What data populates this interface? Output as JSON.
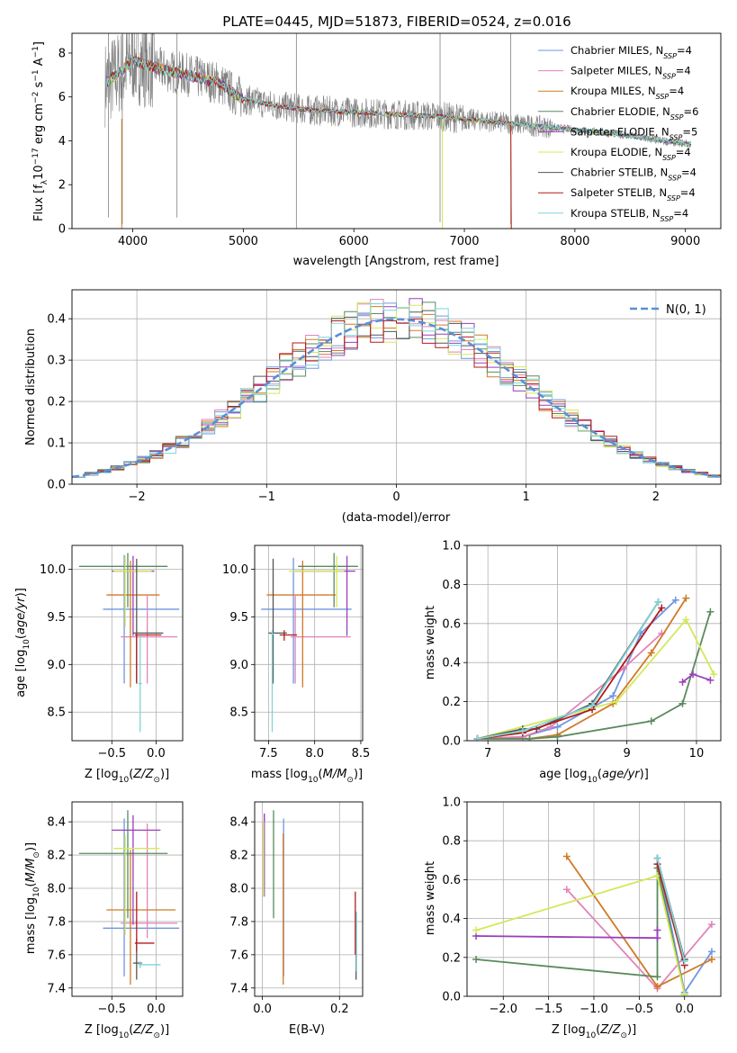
{
  "title": "PLATE=0445, MJD=51873, FIBERID=0524, z=0.016",
  "chart_data": [
    {
      "id": "spectrum",
      "type": "line",
      "xlabel": "wavelength [Angstrom, rest frame]",
      "ylabel": "Flux [f_λ10^-17 erg cm^-2 s^-1 A^-1]",
      "xlim": [
        3450,
        9320
      ],
      "ylim": [
        0,
        8.9
      ],
      "xticks": [
        4000,
        5000,
        6000,
        7000,
        8000,
        9000
      ],
      "yticks": [
        0,
        2,
        4,
        6,
        8
      ],
      "data_color": "#808080",
      "continuum": {
        "x": [
          3750,
          3900,
          4000,
          4100,
          4300,
          4500,
          4800,
          4900,
          5000,
          5300,
          5600,
          6000,
          6400,
          6800,
          7000,
          7400,
          7600,
          7800,
          8000,
          8200,
          8400,
          8600,
          8800,
          9050
        ],
        "y": [
          6.6,
          7.2,
          7.7,
          7.5,
          7.2,
          7.0,
          6.6,
          6.2,
          5.9,
          5.6,
          5.4,
          5.3,
          5.2,
          5.1,
          5.0,
          4.8,
          4.7,
          4.6,
          4.5,
          4.4,
          4.3,
          4.15,
          4.0,
          3.85
        ]
      },
      "legend": [
        {
          "name": "Chabrier MILES, N",
          "sub": "SSP",
          "tail": "=4",
          "color": "#6f96e0"
        },
        {
          "name": "Salpeter MILES, N",
          "sub": "SSP",
          "tail": "=4",
          "color": "#e084b8"
        },
        {
          "name": "Kroupa MILES, N",
          "sub": "SSP",
          "tail": "=4",
          "color": "#d07a26"
        },
        {
          "name": "Chabrier ELODIE, N",
          "sub": "SSP",
          "tail": "=6",
          "color": "#5a8a5e"
        },
        {
          "name": "Salpeter ELODIE, N",
          "sub": "SSP",
          "tail": "=5",
          "color": "#9a3fba"
        },
        {
          "name": "Kroupa ELODIE, N",
          "sub": "SSP",
          "tail": "=4",
          "color": "#d4e85a"
        },
        {
          "name": "Chabrier STELIB, N",
          "sub": "SSP",
          "tail": "=4",
          "color": "#555555"
        },
        {
          "name": "Salpeter STELIB, N",
          "sub": "SSP",
          "tail": "=4",
          "color": "#b31b1b"
        },
        {
          "name": "Kroupa STELIB, N",
          "sub": "SSP",
          "tail": "=4",
          "color": "#7fd4d8"
        }
      ]
    },
    {
      "id": "residuals",
      "type": "histogram",
      "xlabel": "(data-model)/error",
      "ylabel": "Normed distribution",
      "xlim": [
        -2.5,
        2.5
      ],
      "ylim": [
        0,
        0.47
      ],
      "xticks": [
        -2,
        -1,
        0,
        1,
        2
      ],
      "yticks": [
        0.0,
        0.1,
        0.2,
        0.3,
        0.4
      ],
      "bin_width": 0.1,
      "legend_label": "N(0, 1)",
      "gauss_color": "#5b8fd6"
    },
    {
      "id": "age_vs_Z",
      "type": "errorbar",
      "xlabel": "Z [log10(Z/Z⊙)]",
      "ylabel": "age [log10(age/yr)]",
      "xlim": [
        -0.95,
        0.3
      ],
      "ylim": [
        8.2,
        10.25
      ],
      "xticks": [
        -0.5,
        0.0
      ],
      "yticks": [
        8.5,
        9.0,
        9.5,
        10.0
      ],
      "points": [
        {
          "x": -0.36,
          "y": 9.58,
          "xe": [
            -0.6,
            0.26
          ],
          "ye": [
            8.8,
            10.15
          ],
          "color": "#6f96e0"
        },
        {
          "x": -0.1,
          "y": 9.29,
          "xe": [
            -0.4,
            0.24
          ],
          "ye": [
            8.8,
            9.72
          ],
          "color": "#e084b8"
        },
        {
          "x": -0.29,
          "y": 9.73,
          "xe": [
            -0.56,
            0.04
          ],
          "ye": [
            8.76,
            10.09
          ],
          "color": "#d07a26"
        },
        {
          "x": -0.32,
          "y": 10.03,
          "xe": [
            -0.87,
            0.13
          ],
          "ye": [
            9.6,
            10.17
          ],
          "color": "#5a8a5e"
        },
        {
          "x": -0.26,
          "y": 9.98,
          "xe": [
            -0.5,
            -0.02
          ],
          "ye": [
            9.3,
            10.14
          ],
          "color": "#9a3fba"
        },
        {
          "x": -0.35,
          "y": 9.98,
          "xe": [
            -0.48,
            -0.05
          ],
          "ye": [
            9.4,
            10.14
          ],
          "color": "#d4e85a"
        },
        {
          "x": -0.22,
          "y": 9.33,
          "xe": [
            -0.26,
            0.08
          ],
          "ye": [
            8.8,
            10.11
          ],
          "color": "#555555"
        },
        {
          "x": -0.22,
          "y": 9.31,
          "xe": [
            -0.24,
            0.06
          ],
          "ye": [
            8.8,
            9.32
          ],
          "color": "#b31b1b"
        },
        {
          "x": -0.18,
          "y": 8.8,
          "xe": [
            -0.2,
            -0.16
          ],
          "ye": [
            8.29,
            9.3
          ],
          "color": "#7fd4d8"
        }
      ]
    },
    {
      "id": "age_vs_mass",
      "type": "errorbar",
      "xlabel": "mass [log10(M/M⊙)]",
      "ylabel": "",
      "xlim": [
        7.35,
        8.52
      ],
      "ylim": [
        8.2,
        10.25
      ],
      "xticks": [
        7.5,
        8.0,
        8.5
      ],
      "yticks": [
        8.5,
        9.0,
        9.5,
        10.0
      ],
      "points": [
        {
          "x": 7.77,
          "y": 9.58,
          "xe": [
            7.42,
            8.4
          ],
          "ye": [
            8.8,
            10.12
          ],
          "color": "#6f96e0"
        },
        {
          "x": 7.79,
          "y": 9.29,
          "xe": [
            7.74,
            8.39
          ],
          "ye": [
            8.8,
            9.72
          ],
          "color": "#e084b8"
        },
        {
          "x": 7.87,
          "y": 9.73,
          "xe": [
            7.48,
            8.23
          ],
          "ye": [
            8.76,
            10.09
          ],
          "color": "#d07a26"
        },
        {
          "x": 8.21,
          "y": 10.03,
          "xe": [
            7.82,
            8.47
          ],
          "ye": [
            9.6,
            10.17
          ],
          "color": "#5a8a5e"
        },
        {
          "x": 8.35,
          "y": 9.98,
          "xe": [
            7.78,
            8.44
          ],
          "ye": [
            9.3,
            10.14
          ],
          "color": "#9a3fba"
        },
        {
          "x": 8.24,
          "y": 9.98,
          "xe": [
            7.72,
            8.32
          ],
          "ye": [
            9.6,
            10.14
          ],
          "color": "#d4e85a"
        },
        {
          "x": 7.55,
          "y": 9.33,
          "xe": [
            7.5,
            7.7
          ],
          "ye": [
            8.8,
            10.11
          ],
          "color": "#555555"
        },
        {
          "x": 7.67,
          "y": 9.31,
          "xe": [
            7.62,
            7.81
          ],
          "ye": [
            9.25,
            9.36
          ],
          "color": "#b31b1b"
        },
        {
          "x": 7.54,
          "y": 9.32,
          "xe": [
            7.52,
            7.56
          ],
          "ye": [
            8.29,
            9.36
          ],
          "color": "#7fd4d8"
        }
      ]
    },
    {
      "id": "weight_vs_age",
      "type": "line",
      "xlabel": "age [log10(age/yr)]",
      "ylabel": "mass weight",
      "xlim": [
        6.7,
        10.35
      ],
      "ylim": [
        0,
        1.0
      ],
      "xticks": [
        7,
        8,
        9,
        10
      ],
      "yticks": [
        0.0,
        0.2,
        0.4,
        0.6,
        0.8,
        1.0
      ],
      "series": [
        {
          "color": "#6f96e0",
          "x": [
            6.85,
            7.5,
            8.0,
            8.8,
            9.2,
            9.7
          ],
          "y": [
            0.01,
            0.02,
            0.07,
            0.23,
            0.55,
            0.72
          ]
        },
        {
          "color": "#e084b8",
          "x": [
            6.85,
            7.5,
            7.9,
            8.95,
            9.5
          ],
          "y": [
            0.01,
            0.02,
            0.07,
            0.37,
            0.55
          ]
        },
        {
          "color": "#d07a26",
          "x": [
            6.85,
            7.6,
            8.0,
            8.8,
            9.35,
            9.85
          ],
          "y": [
            0.01,
            0.01,
            0.03,
            0.19,
            0.45,
            0.73
          ]
        },
        {
          "color": "#5a8a5e",
          "x": [
            6.85,
            7.6,
            8.0,
            9.35,
            9.8,
            10.2
          ],
          "y": [
            0.01,
            0.01,
            0.02,
            0.1,
            0.19,
            0.66
          ]
        },
        {
          "color": "#9a3fba",
          "x": [
            9.8,
            9.95,
            10.2
          ],
          "y": [
            0.3,
            0.34,
            0.31
          ]
        },
        {
          "color": "#d4e85a",
          "x": [
            6.85,
            8.85,
            9.85,
            10.25
          ],
          "y": [
            0.01,
            0.2,
            0.62,
            0.34
          ]
        },
        {
          "color": "#555555",
          "x": [
            6.85,
            7.5,
            7.7,
            8.5,
            9.45
          ],
          "y": [
            0.01,
            0.06,
            0.06,
            0.19,
            0.71
          ]
        },
        {
          "color": "#b31b1b",
          "x": [
            6.85,
            7.5,
            8.5,
            9.5
          ],
          "y": [
            0.01,
            0.04,
            0.16,
            0.68
          ]
        },
        {
          "color": "#7fd4d8",
          "x": [
            6.85,
            7.5,
            8.5,
            9.45
          ],
          "y": [
            0.01,
            0.05,
            0.18,
            0.71
          ]
        }
      ]
    },
    {
      "id": "mass_vs_Z",
      "type": "errorbar",
      "xlabel": "Z [log10(Z/Z⊙)]",
      "ylabel": "mass [log10(M/M⊙)]",
      "xlim": [
        -0.95,
        0.3
      ],
      "ylim": [
        7.35,
        8.52
      ],
      "xticks": [
        -0.5,
        0.0
      ],
      "yticks": [
        7.4,
        7.6,
        7.8,
        8.0,
        8.2,
        8.4
      ],
      "points": [
        {
          "x": -0.36,
          "y": 7.76,
          "xe": [
            -0.6,
            0.26
          ],
          "ye": [
            7.47,
            8.42
          ],
          "color": "#6f96e0"
        },
        {
          "x": -0.1,
          "y": 7.79,
          "xe": [
            -0.4,
            0.24
          ],
          "ye": [
            7.7,
            8.39
          ],
          "color": "#e084b8"
        },
        {
          "x": -0.29,
          "y": 7.87,
          "xe": [
            -0.56,
            0.22
          ],
          "ye": [
            7.42,
            8.23
          ],
          "color": "#d07a26"
        },
        {
          "x": -0.32,
          "y": 8.21,
          "xe": [
            -0.87,
            0.13
          ],
          "ye": [
            7.82,
            8.47
          ],
          "color": "#5a8a5e"
        },
        {
          "x": -0.26,
          "y": 8.35,
          "xe": [
            -0.5,
            0.05
          ],
          "ye": [
            7.78,
            8.44
          ],
          "color": "#9a3fba"
        },
        {
          "x": -0.35,
          "y": 8.24,
          "xe": [
            -0.48,
            0.04
          ],
          "ye": [
            7.72,
            8.32
          ],
          "color": "#d4e85a"
        },
        {
          "x": -0.22,
          "y": 7.55,
          "xe": [
            -0.26,
            -0.16
          ],
          "ye": [
            7.45,
            7.7
          ],
          "color": "#555555"
        },
        {
          "x": -0.22,
          "y": 7.67,
          "xe": [
            -0.24,
            -0.02
          ],
          "ye": [
            7.62,
            7.98
          ],
          "color": "#b31b1b"
        },
        {
          "x": -0.18,
          "y": 7.54,
          "xe": [
            -0.2,
            0.05
          ],
          "ye": [
            7.52,
            7.56
          ],
          "color": "#7fd4d8"
        }
      ]
    },
    {
      "id": "mass_vs_ebv",
      "type": "errorbar",
      "xlabel": "E(B-V)",
      "ylabel": "",
      "xlim": [
        -0.02,
        0.26
      ],
      "ylim": [
        7.35,
        8.52
      ],
      "xticks": [
        0.0,
        0.2
      ],
      "yticks": [
        7.4,
        7.6,
        7.8,
        8.0,
        8.2,
        8.4
      ],
      "points": [
        {
          "x": 0.055,
          "y": 7.76,
          "ye": [
            7.47,
            8.42
          ],
          "color": "#6f96e0"
        },
        {
          "x": 0.005,
          "y": 8.0,
          "ye": [
            8.0,
            8.45
          ],
          "color": "#e084b8"
        },
        {
          "x": 0.054,
          "y": 7.87,
          "ye": [
            7.42,
            8.33
          ],
          "color": "#d07a26"
        },
        {
          "x": 0.029,
          "y": 8.21,
          "ye": [
            7.82,
            8.47
          ],
          "color": "#5a8a5e"
        },
        {
          "x": 0.005,
          "y": 8.3,
          "ye": [
            7.95,
            8.45
          ],
          "color": "#9a3fba"
        },
        {
          "x": 0.003,
          "y": 8.24,
          "ye": [
            7.95,
            8.4
          ],
          "color": "#d4e85a"
        },
        {
          "x": 0.243,
          "y": 7.55,
          "ye": [
            7.45,
            7.82
          ],
          "color": "#555555"
        },
        {
          "x": 0.241,
          "y": 7.67,
          "ye": [
            7.6,
            7.98
          ],
          "color": "#b31b1b"
        },
        {
          "x": 0.244,
          "y": 7.54,
          "ye": [
            7.5,
            7.86
          ],
          "color": "#7fd4d8"
        }
      ]
    },
    {
      "id": "weight_vs_Z",
      "type": "line",
      "xlabel": "Z [log10(Z/Z⊙)]",
      "ylabel": "mass weight",
      "xlim": [
        -2.4,
        0.4
      ],
      "ylim": [
        0,
        1.0
      ],
      "xticks": [
        -2.0,
        -1.5,
        -1.0,
        -0.5,
        0.0
      ],
      "yticks": [
        0.0,
        0.2,
        0.4,
        0.6,
        0.8,
        1.0
      ],
      "series": [
        {
          "color": "#6f96e0",
          "x": [
            -0.3,
            0.0,
            0.3
          ],
          "y": [
            0.71,
            0.02,
            0.23
          ]
        },
        {
          "color": "#e084b8",
          "x": [
            -1.3,
            -0.3,
            0.3
          ],
          "y": [
            0.55,
            0.04,
            0.37
          ]
        },
        {
          "color": "#d07a26",
          "x": [
            -1.3,
            -0.3,
            0.3
          ],
          "y": [
            0.72,
            0.05,
            0.19
          ]
        },
        {
          "color": "#5a8a5e",
          "x": [
            -2.3,
            -0.3,
            -0.3,
            0.0
          ],
          "y": [
            0.19,
            0.1,
            0.66,
            0.01
          ]
        },
        {
          "color": "#9a3fba",
          "x": [
            -2.3,
            -0.3,
            -0.3
          ],
          "y": [
            0.31,
            0.3,
            0.34
          ]
        },
        {
          "color": "#d4e85a",
          "x": [
            -2.3,
            -0.3,
            0.0
          ],
          "y": [
            0.34,
            0.62,
            0.01
          ]
        },
        {
          "color": "#555555",
          "x": [
            -0.3,
            0.0
          ],
          "y": [
            0.71,
            0.19
          ]
        },
        {
          "color": "#b31b1b",
          "x": [
            -0.3,
            0.0
          ],
          "y": [
            0.68,
            0.16
          ]
        },
        {
          "color": "#7fd4d8",
          "x": [
            -0.3,
            0.0
          ],
          "y": [
            0.71,
            0.18
          ]
        }
      ]
    }
  ]
}
